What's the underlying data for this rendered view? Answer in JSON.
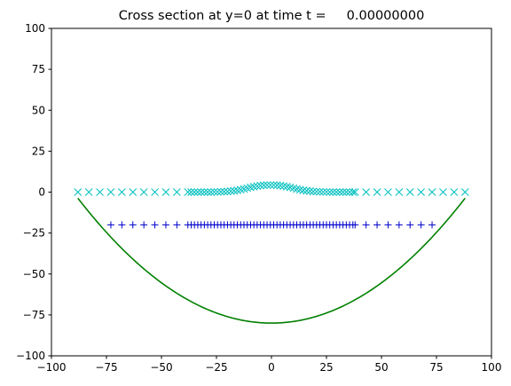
{
  "chart_data": {
    "type": "scatter",
    "title": "Cross section at y=0 at time t =     0.00000000",
    "xlabel": "",
    "ylabel": "",
    "xlim": [
      -100,
      100
    ],
    "ylim": [
      -100,
      100
    ],
    "xticks": [
      -100,
      -75,
      -50,
      -25,
      0,
      25,
      50,
      75,
      100
    ],
    "yticks": [
      -100,
      -75,
      -50,
      -25,
      0,
      25,
      50,
      75,
      100
    ],
    "grid": false,
    "series": [
      {
        "marker": "x",
        "color": "#00bfbf",
        "x": [
          -88,
          -83,
          -78,
          -73,
          -68,
          -63,
          -58,
          -53,
          -48,
          -43,
          -38,
          -36.5,
          -35,
          -33.5,
          -32,
          -30.5,
          -29,
          -27.5,
          -26,
          -24.5,
          -23,
          -21.5,
          -20,
          -18.5,
          -17,
          -15.5,
          -14,
          -12.5,
          -11,
          -9.5,
          -8,
          -6.5,
          -5,
          -3.5,
          -2,
          -0.5,
          1,
          2.5,
          4,
          5.5,
          7,
          8.5,
          10,
          11.5,
          13,
          14.5,
          16,
          17.5,
          19,
          20.5,
          22,
          23.5,
          25,
          26.5,
          28,
          29.5,
          31,
          32.5,
          34,
          35.5,
          37,
          38,
          43,
          48,
          53,
          58,
          63,
          68,
          73,
          78,
          83,
          88
        ],
        "y": [
          0,
          0,
          0,
          0,
          0,
          0,
          0,
          0,
          0,
          0,
          0,
          0,
          0,
          0,
          0,
          0,
          0,
          0,
          0.1,
          0.1,
          0.2,
          0.3,
          0.4,
          0.6,
          0.8,
          1.1,
          1.5,
          1.9,
          2.4,
          2.9,
          3.3,
          3.7,
          4.0,
          4.2,
          4.3,
          4.3,
          4.3,
          4.2,
          4.0,
          3.7,
          3.3,
          2.9,
          2.4,
          1.9,
          1.5,
          1.1,
          0.8,
          0.6,
          0.4,
          0.3,
          0.2,
          0.1,
          0.1,
          0,
          0,
          0,
          0,
          0,
          0,
          0,
          0,
          0,
          0,
          0,
          0,
          0,
          0,
          0,
          0,
          0,
          0,
          0
        ]
      },
      {
        "marker": "+",
        "color": "#0000cc",
        "x": [
          -73,
          -68,
          -63,
          -58,
          -53,
          -48,
          -43,
          -38,
          -36.5,
          -35,
          -33.5,
          -32,
          -30.5,
          -29,
          -27.5,
          -26,
          -24.5,
          -23,
          -21.5,
          -20,
          -18.5,
          -17,
          -15.5,
          -14,
          -12.5,
          -11,
          -9.5,
          -8,
          -6.5,
          -5,
          -3.5,
          -2,
          -0.5,
          1,
          2.5,
          4,
          5.5,
          7,
          8.5,
          10,
          11.5,
          13,
          14.5,
          16,
          17.5,
          19,
          20.5,
          22,
          23.5,
          25,
          26.5,
          28,
          29.5,
          31,
          32.5,
          34,
          35.5,
          37,
          38,
          43,
          48,
          53,
          58,
          63,
          68,
          73
        ],
        "y": -20
      },
      {
        "marker": "line",
        "color": "#008000",
        "x_range": [
          -88,
          88
        ],
        "vertex": [
          0,
          -80
        ],
        "curvature": 0.00985
      }
    ]
  }
}
